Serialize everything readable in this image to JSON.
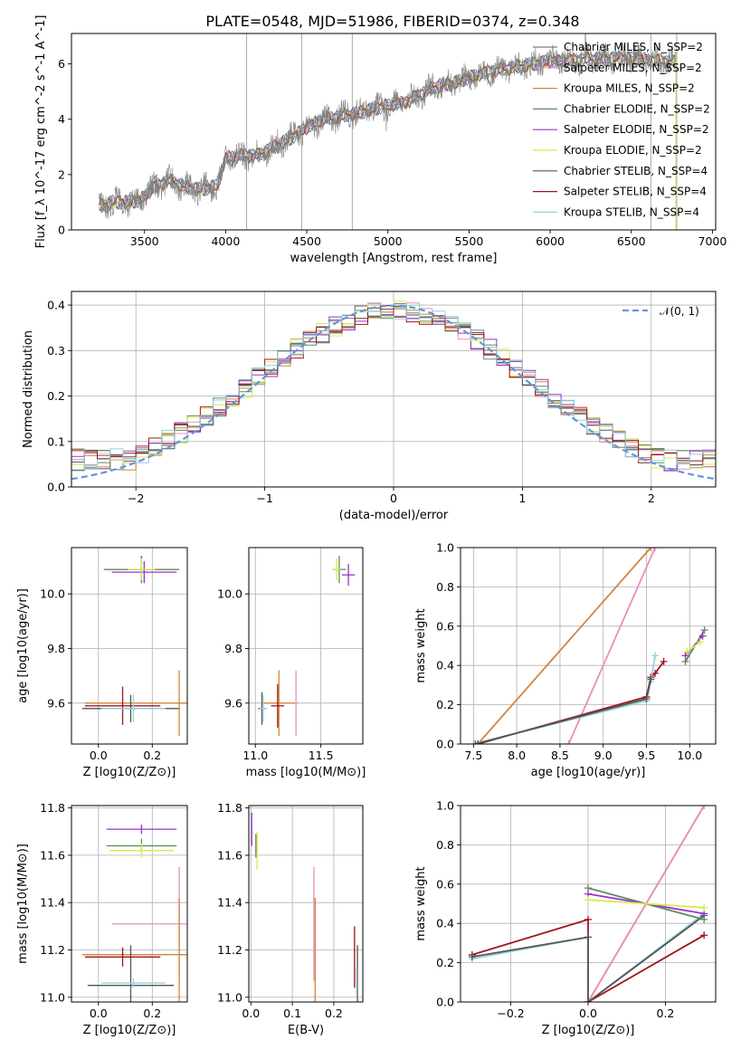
{
  "title": "PLATE=0548, MJD=51986, FIBERID=0374, z=0.348",
  "colors": {
    "Chabrier MILES": "#708090",
    "Salpeter MILES": "#e88fbd",
    "Kroupa MILES": "#d2853f",
    "Chabrier ELODIE": "#5f8a5f",
    "Salpeter ELODIE": "#9932cc",
    "Kroupa ELODIE": "#d4ec4c",
    "Chabrier STELIB": "#555555",
    "Salpeter STELIB": "#a0161e",
    "Kroupa STELIB": "#8fd3d8",
    "normal": "#6495dd",
    "data": "#808080"
  },
  "chart_data": [
    {
      "id": "spectrum",
      "type": "line",
      "xlabel": "wavelength [Angstrom, rest frame]",
      "ylabel": "Flux [f_λ 10^-17 erg cm^-2 s^-1 A^-1]",
      "xlim": [
        3050,
        7020
      ],
      "ylim": [
        0,
        7.1
      ],
      "xticks": [
        3500,
        4000,
        4500,
        5000,
        5500,
        6000,
        6500,
        7000
      ],
      "yticks": [
        0,
        2,
        4,
        6
      ],
      "grid": false,
      "legend_position": "top-right",
      "legend": [
        "Chabrier MILES, N_SSP=2",
        "Salpeter MILES, N_SSP=2",
        "Kroupa MILES, N_SSP=2",
        "Chabrier ELODIE, N_SSP=2",
        "Salpeter ELODIE, N_SSP=2",
        "Kroupa ELODIE, N_SSP=2",
        "Chabrier STELIB, N_SSP=4",
        "Salpeter STELIB, N_SSP=4",
        "Kroupa STELIB, N_SSP=4"
      ],
      "continuum": {
        "x": [
          3220,
          3300,
          3380,
          3470,
          3550,
          3650,
          3750,
          3850,
          3950,
          4000,
          4100,
          4200,
          4300,
          4400,
          4500,
          4600,
          4700,
          4800,
          4900,
          5000,
          5100,
          5200,
          5300,
          5400,
          5500,
          5600,
          5700,
          5800,
          5900,
          6000,
          6100,
          6200,
          6300,
          6400,
          6500,
          6600,
          6700,
          6780
        ],
        "y": [
          0.85,
          1.0,
          1.0,
          1.05,
          1.5,
          1.8,
          1.55,
          1.45,
          1.6,
          2.6,
          2.7,
          2.7,
          3.0,
          3.3,
          3.7,
          4.0,
          4.1,
          4.2,
          4.35,
          4.5,
          4.6,
          4.9,
          5.2,
          5.3,
          5.5,
          5.7,
          5.8,
          5.9,
          6.0,
          6.1,
          6.1,
          6.15,
          6.2,
          6.2,
          6.2,
          6.15,
          6.1,
          6.05
        ]
      }
    },
    {
      "id": "residuals",
      "type": "line",
      "xlabel": "(data-model)/error",
      "ylabel": "Normed distribution",
      "xlim": [
        -2.5,
        2.5
      ],
      "ylim": [
        0,
        0.43
      ],
      "xticks": [
        -2,
        -1,
        0,
        1,
        2
      ],
      "yticks": [
        0.0,
        0.1,
        0.2,
        0.3,
        0.4
      ],
      "grid": true,
      "legend_position": "top-right",
      "legend": [
        "N(0,1)"
      ],
      "bin_width": 0.1
    },
    {
      "id": "age-vs-Z",
      "type": "scatter",
      "xlabel": "Z [log10(Z/Z⊙)]",
      "ylabel": "age  [log10(age/yr)]",
      "xlim": [
        -0.1,
        0.33
      ],
      "ylim": [
        9.45,
        10.17
      ],
      "xticks": [
        0.0,
        0.2
      ],
      "yticks": [
        9.6,
        9.8,
        10.0
      ],
      "grid": true,
      "points": [
        {
          "series": "Chabrier MILES",
          "x": 0.16,
          "y": 10.09,
          "xerr": 0.14,
          "yerr": 0.05
        },
        {
          "series": "Kroupa MILES",
          "x": 0.3,
          "y": 9.6,
          "xerr": 0.35,
          "yerr": 0.12
        },
        {
          "series": "Chabrier ELODIE",
          "x": 0.16,
          "y": 10.09,
          "xerr": 0.14,
          "yerr": 0.05
        },
        {
          "series": "Salpeter ELODIE",
          "x": 0.17,
          "y": 10.08,
          "xerr": 0.12,
          "yerr": 0.04
        },
        {
          "series": "Kroupa ELODIE",
          "x": 0.16,
          "y": 10.09,
          "xerr": 0.05,
          "yerr": 0.04
        },
        {
          "series": "Chabrier STELIB",
          "x": 0.12,
          "y": 9.58,
          "xerr": 0.18,
          "yerr": 0.05
        },
        {
          "series": "Salpeter STELIB",
          "x": 0.09,
          "y": 9.59,
          "xerr": 0.14,
          "yerr": 0.07
        },
        {
          "series": "Kroupa STELIB",
          "x": 0.13,
          "y": 9.58,
          "xerr": 0.12,
          "yerr": 0.05
        }
      ]
    },
    {
      "id": "age-vs-mass",
      "type": "scatter",
      "xlabel": "mass [log10(M/M⊙)]",
      "ylabel": "",
      "xlim": [
        10.95,
        11.82
      ],
      "ylim": [
        9.45,
        10.17
      ],
      "xticks": [
        11.0,
        11.5
      ],
      "yticks": [
        9.6,
        9.8,
        10.0
      ],
      "grid": true,
      "points": [
        {
          "series": "Salpeter MILES",
          "x": 11.31,
          "y": 9.6,
          "xerr": 0.02,
          "yerr": 0.12
        },
        {
          "series": "Kroupa MILES",
          "x": 11.18,
          "y": 9.6,
          "xerr": 0.12,
          "yerr": 0.12
        },
        {
          "series": "Chabrier ELODIE",
          "x": 11.64,
          "y": 10.09,
          "xerr": 0.05,
          "yerr": 0.05
        },
        {
          "series": "Salpeter ELODIE",
          "x": 11.71,
          "y": 10.07,
          "xerr": 0.05,
          "yerr": 0.04
        },
        {
          "series": "Kroupa ELODIE",
          "x": 11.62,
          "y": 10.09,
          "xerr": 0.03,
          "yerr": 0.04
        },
        {
          "series": "Chabrier STELIB",
          "x": 11.05,
          "y": 9.58,
          "xerr": 0.03,
          "yerr": 0.06
        },
        {
          "series": "Salpeter STELIB",
          "x": 11.17,
          "y": 9.59,
          "xerr": 0.05,
          "yerr": 0.08
        },
        {
          "series": "Kroupa STELIB",
          "x": 11.06,
          "y": 9.58,
          "xerr": 0.03,
          "yerr": 0.05
        }
      ]
    },
    {
      "id": "weight-vs-age",
      "type": "line",
      "xlabel": "age  [log10(age/yr)]",
      "ylabel": "mass weight",
      "xlim": [
        7.35,
        10.3
      ],
      "ylim": [
        0,
        1.0
      ],
      "xticks": [
        7.5,
        8.0,
        8.5,
        9.0,
        9.5,
        10.0
      ],
      "yticks": [
        0.0,
        0.2,
        0.4,
        0.6,
        0.8,
        1.0
      ],
      "grid": true,
      "lines": [
        {
          "series": "Kroupa MILES",
          "x": [
            7.55,
            9.55
          ],
          "y": [
            0.0,
            1.0
          ]
        },
        {
          "series": "Salpeter MILES",
          "x": [
            8.6,
            9.6
          ],
          "y": [
            0.0,
            1.0
          ]
        },
        {
          "series": "Salpeter STELIB",
          "x": [
            7.55,
            9.5,
            9.55,
            9.6,
            9.7
          ],
          "y": [
            0.0,
            0.24,
            0.34,
            0.36,
            0.42
          ]
        },
        {
          "series": "Kroupa STELIB",
          "x": [
            7.5,
            9.5,
            9.55,
            9.6
          ],
          "y": [
            0.0,
            0.22,
            0.32,
            0.45
          ]
        },
        {
          "series": "Chabrier STELIB",
          "x": [
            7.52,
            9.5,
            9.55
          ],
          "y": [
            0.0,
            0.23,
            0.33
          ]
        },
        {
          "series": "Chabrier ELODIE",
          "x": [
            9.95,
            10.17
          ],
          "y": [
            0.42,
            0.58
          ]
        },
        {
          "series": "Salpeter ELODIE",
          "x": [
            9.95,
            10.15
          ],
          "y": [
            0.45,
            0.55
          ]
        },
        {
          "series": "Kroupa ELODIE",
          "x": [
            9.97,
            10.12
          ],
          "y": [
            0.47,
            0.52
          ]
        }
      ]
    },
    {
      "id": "mass-vs-Z",
      "type": "scatter",
      "xlabel": "Z [log10(Z/Z⊙)]",
      "ylabel": "mass [log10(M/M⊙)]",
      "xlim": [
        -0.1,
        0.33
      ],
      "ylim": [
        10.98,
        11.81
      ],
      "xticks": [
        0.0,
        0.2
      ],
      "yticks": [
        11.0,
        11.2,
        11.4,
        11.6,
        11.8
      ],
      "grid": true,
      "points": [
        {
          "series": "Salpeter MILES",
          "x": 0.3,
          "y": 11.31,
          "xerr": 0.25,
          "yerr": 0.24
        },
        {
          "series": "Kroupa MILES",
          "x": 0.3,
          "y": 11.18,
          "xerr": 0.36,
          "yerr": 0.24
        },
        {
          "series": "Chabrier ELODIE",
          "x": 0.16,
          "y": 11.64,
          "xerr": 0.13,
          "yerr": 0.03
        },
        {
          "series": "Salpeter ELODIE",
          "x": 0.16,
          "y": 11.71,
          "xerr": 0.13,
          "yerr": 0.02
        },
        {
          "series": "Kroupa ELODIE",
          "x": 0.16,
          "y": 11.62,
          "xerr": 0.12,
          "yerr": 0.03
        },
        {
          "series": "Chabrier STELIB",
          "x": 0.12,
          "y": 11.05,
          "xerr": 0.16,
          "yerr": 0.17
        },
        {
          "series": "Salpeter STELIB",
          "x": 0.09,
          "y": 11.17,
          "xerr": 0.14,
          "yerr": 0.04
        },
        {
          "series": "Kroupa STELIB",
          "x": 0.13,
          "y": 11.06,
          "xerr": 0.12,
          "yerr": 0.02
        }
      ]
    },
    {
      "id": "mass-vs-ebv",
      "type": "scatter",
      "xlabel": "E(B-V)",
      "ylabel": "",
      "xlim": [
        -0.005,
        0.27
      ],
      "ylim": [
        10.98,
        11.81
      ],
      "xticks": [
        0.0,
        0.1,
        0.2
      ],
      "yticks": [
        11.0,
        11.2,
        11.4,
        11.6,
        11.8
      ],
      "grid": true,
      "points": [
        {
          "series": "Salpeter MILES",
          "x": 0.152,
          "y": 11.31,
          "xerr": 0.0,
          "yerr": 0.24
        },
        {
          "series": "Kroupa MILES",
          "x": 0.155,
          "y": 11.18,
          "xerr": 0.0,
          "yerr": 0.24
        },
        {
          "series": "Chabrier ELODIE",
          "x": 0.012,
          "y": 11.64,
          "xerr": 0.0,
          "yerr": 0.05
        },
        {
          "series": "Salpeter ELODIE",
          "x": 0.002,
          "y": 11.71,
          "xerr": 0.0,
          "yerr": 0.07
        },
        {
          "series": "Kroupa ELODIE",
          "x": 0.015,
          "y": 11.62,
          "xerr": 0.0,
          "yerr": 0.08
        },
        {
          "series": "Chabrier STELIB",
          "x": 0.257,
          "y": 11.05,
          "xerr": 0.0,
          "yerr": 0.17
        },
        {
          "series": "Salpeter STELIB",
          "x": 0.25,
          "y": 11.17,
          "xerr": 0.0,
          "yerr": 0.13
        },
        {
          "series": "Kroupa STELIB",
          "x": 0.255,
          "y": 11.06,
          "xerr": 0.0,
          "yerr": 0.06
        }
      ]
    },
    {
      "id": "weight-vs-Z",
      "type": "line",
      "xlabel": "Z [log10(Z/Z⊙)]",
      "ylabel": "mass weight",
      "xlim": [
        -0.33,
        0.33
      ],
      "ylim": [
        0,
        1.0
      ],
      "xticks": [
        -0.2,
        0.0,
        0.2
      ],
      "yticks": [
        0.0,
        0.2,
        0.4,
        0.6,
        0.8,
        1.0
      ],
      "grid": true,
      "lines": [
        {
          "series": "Kroupa MILES",
          "x": [
            0.0,
            0.3
          ],
          "y": [
            0.0,
            1.0
          ]
        },
        {
          "series": "Salpeter MILES",
          "x": [
            0.0,
            0.3
          ],
          "y": [
            0.0,
            1.0
          ]
        },
        {
          "series": "Salpeter STELIB",
          "x": [
            -0.3,
            0.0,
            0.0,
            0.3
          ],
          "y": [
            0.24,
            0.42,
            0.0,
            0.34
          ]
        },
        {
          "series": "Kroupa STELIB",
          "x": [
            -0.3,
            0.0,
            0.0,
            0.3
          ],
          "y": [
            0.22,
            0.33,
            0.0,
            0.45
          ]
        },
        {
          "series": "Chabrier STELIB",
          "x": [
            -0.3,
            0.0,
            0.0,
            0.3
          ],
          "y": [
            0.23,
            0.33,
            0.0,
            0.44
          ]
        },
        {
          "series": "Chabrier ELODIE",
          "x": [
            0.0,
            0.3
          ],
          "y": [
            0.58,
            0.42
          ]
        },
        {
          "series": "Salpeter ELODIE",
          "x": [
            0.0,
            0.3
          ],
          "y": [
            0.55,
            0.45
          ]
        },
        {
          "series": "Kroupa ELODIE",
          "x": [
            0.0,
            0.3
          ],
          "y": [
            0.52,
            0.48
          ]
        }
      ]
    }
  ]
}
